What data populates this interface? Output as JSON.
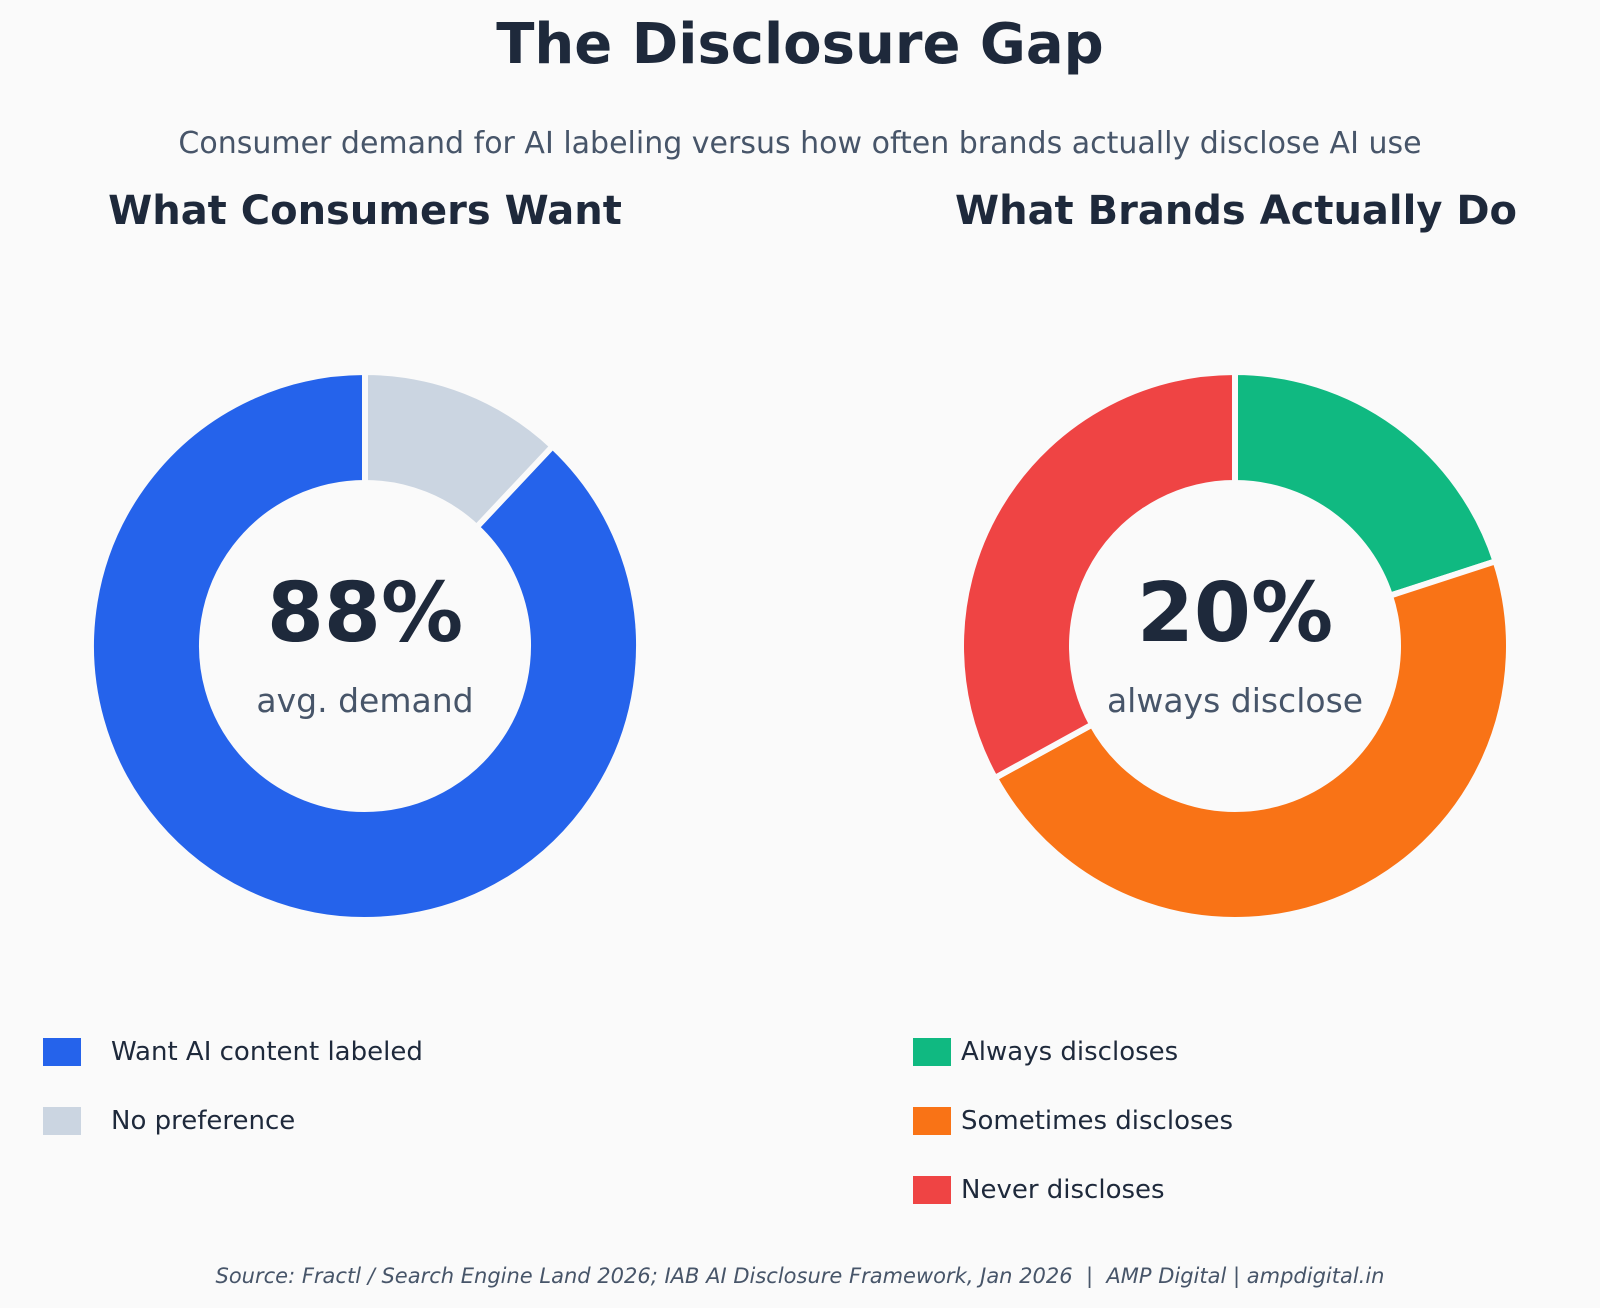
{
  "title": "The Disclosure Gap",
  "subtitle": "Consumer demand for AI labeling versus how often brands actually disclose AI use",
  "source": "Source: Fractl / Search Engine Land 2026; IAB AI Disclosure Framework, Jan 2026  |  AMP Digital | ampdigital.in",
  "chart_data": [
    {
      "type": "pie",
      "style": "donut",
      "title": "What Consumers Want",
      "center_value": "88%",
      "center_label": "avg. demand",
      "legend_position": "bottom-left",
      "slices": [
        {
          "label": "Want AI content labeled",
          "value": 88,
          "color": "#2563eb"
        },
        {
          "label": "No preference",
          "value": 12,
          "color": "#cbd5e1"
        }
      ]
    },
    {
      "type": "pie",
      "style": "donut",
      "title": "What Brands Actually Do",
      "center_value": "20%",
      "center_label": "always disclose",
      "legend_position": "bottom-right",
      "slices": [
        {
          "label": "Always discloses",
          "value": 20,
          "color": "#10b981"
        },
        {
          "label": "Sometimes discloses",
          "value": 47,
          "color": "#f97316"
        },
        {
          "label": "Never discloses",
          "value": 33,
          "color": "#ef4444"
        }
      ]
    }
  ]
}
